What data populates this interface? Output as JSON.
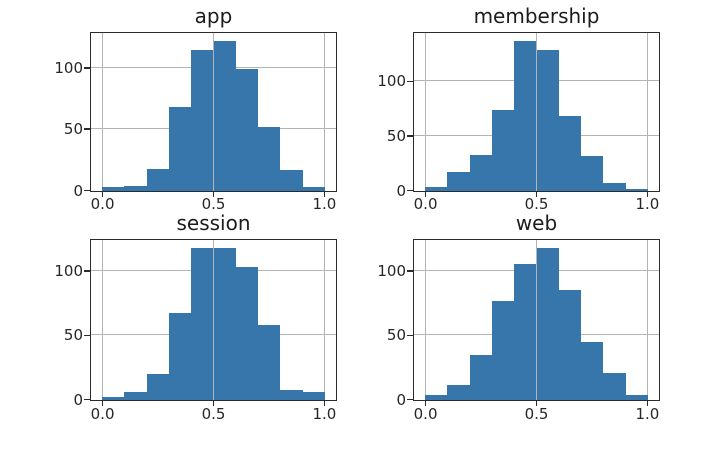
{
  "figure": {
    "background": "#ffffff",
    "kind": "matplotlib-style 2x2 histogram grid"
  },
  "chart_data": {
    "type": "bar",
    "subtype": "histogram",
    "layout_hint": "2x2 grid of subplots, shared 0-1 x range, grid on, no legend",
    "bar_color": "#3776ab",
    "grid_color": "#b4b4b4",
    "spine_color": "#2b2b2b",
    "text_color": "#262626",
    "bin_edges": [
      0.0,
      0.1,
      0.2,
      0.3,
      0.4,
      0.5,
      0.6,
      0.7,
      0.8,
      0.9,
      1.0
    ],
    "xlim": [
      -0.05,
      1.05
    ],
    "xticks": [
      0.0,
      0.5,
      1.0
    ],
    "xtick_labels": [
      "0.0",
      "0.5",
      "1.0"
    ],
    "yticks": [
      0,
      50,
      100
    ],
    "ytick_labels": [
      "0",
      "50",
      "100"
    ],
    "subplots": [
      {
        "title": "app",
        "values": [
          3,
          4,
          18,
          68,
          114,
          122,
          99,
          52,
          17,
          3
        ],
        "ylim": [
          0,
          128.1
        ]
      },
      {
        "title": "membership",
        "values": [
          4,
          17,
          33,
          74,
          137,
          128,
          68,
          32,
          7,
          2
        ],
        "ylim": [
          0,
          143.9
        ]
      },
      {
        "title": "session",
        "values": [
          2,
          6,
          20,
          67,
          118,
          118,
          103,
          58,
          8,
          6
        ],
        "ylim": [
          0,
          123.9
        ]
      },
      {
        "title": "web",
        "values": [
          4,
          12,
          35,
          77,
          105,
          118,
          85,
          45,
          21,
          4
        ],
        "ylim": [
          0,
          123.9
        ]
      }
    ]
  }
}
